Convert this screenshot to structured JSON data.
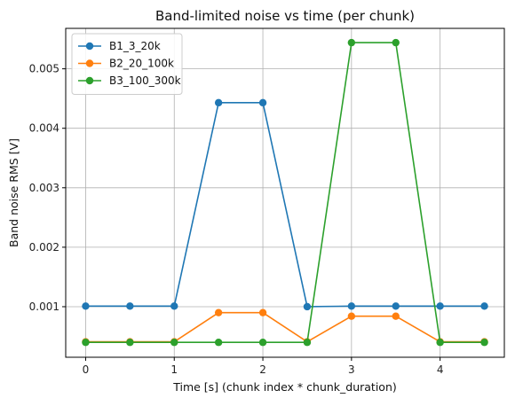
{
  "chart_data": {
    "type": "line",
    "title": "Band-limited noise vs time (per chunk)",
    "xlabel": "Time [s] (chunk index * chunk_duration)",
    "ylabel": "Band noise RMS [V]",
    "xlim": [
      -0.225,
      4.725
    ],
    "ylim": [
      0.00015,
      0.00568
    ],
    "xticks": [
      0,
      1,
      2,
      3,
      4
    ],
    "xtick_labels": [
      "0",
      "1",
      "2",
      "3",
      "4"
    ],
    "yticks": [
      0.001,
      0.002,
      0.003,
      0.004,
      0.005
    ],
    "ytick_labels": [
      "0.001",
      "0.002",
      "0.003",
      "0.004",
      "0.005"
    ],
    "grid": true,
    "legend_position": "top-left",
    "x": [
      0,
      0.5,
      1,
      1.5,
      2,
      2.5,
      3,
      3.5,
      4,
      4.5
    ],
    "series": [
      {
        "name": "B1_3_20k",
        "color": "#1f77b4",
        "values": [
          0.00101,
          0.00101,
          0.00101,
          0.00443,
          0.00443,
          0.001,
          0.00101,
          0.00101,
          0.00101,
          0.00101
        ]
      },
      {
        "name": "B2_20_100k",
        "color": "#ff7f0e",
        "values": [
          0.00041,
          0.00041,
          0.00041,
          0.0009,
          0.0009,
          0.00041,
          0.00084,
          0.00084,
          0.00041,
          0.00041
        ]
      },
      {
        "name": "B3_100_300k",
        "color": "#2ca02c",
        "values": [
          0.0004,
          0.0004,
          0.0004,
          0.0004,
          0.0004,
          0.0004,
          0.00544,
          0.00544,
          0.0004,
          0.0004
        ]
      }
    ]
  }
}
